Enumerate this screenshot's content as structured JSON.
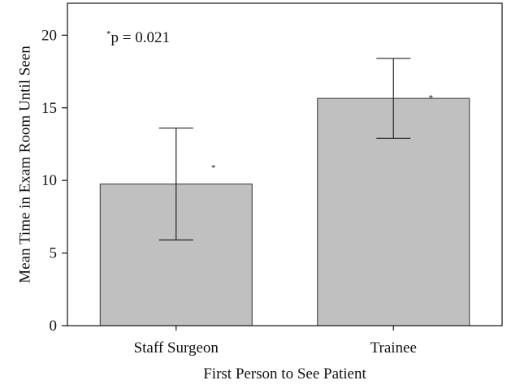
{
  "chart_data": {
    "type": "bar",
    "title": "",
    "xlabel": "First Person to See Patient",
    "ylabel": "Mean Time in Exam Room Until Seen",
    "categories": [
      "Staff Surgeon",
      "Trainee"
    ],
    "values": [
      9.75,
      15.65
    ],
    "error_low": [
      5.9,
      12.9
    ],
    "error_high": [
      13.6,
      18.4
    ],
    "ylim": [
      0,
      22.2
    ],
    "yticks": [
      0,
      5,
      10,
      15,
      20
    ],
    "grid": false,
    "legend": "none",
    "significance_marks": [
      "*",
      "*"
    ],
    "annotation": {
      "star": "*",
      "text": "p = 0.021"
    },
    "bar_color": "#c0c0c0",
    "bar_edge_color": "#333333"
  }
}
